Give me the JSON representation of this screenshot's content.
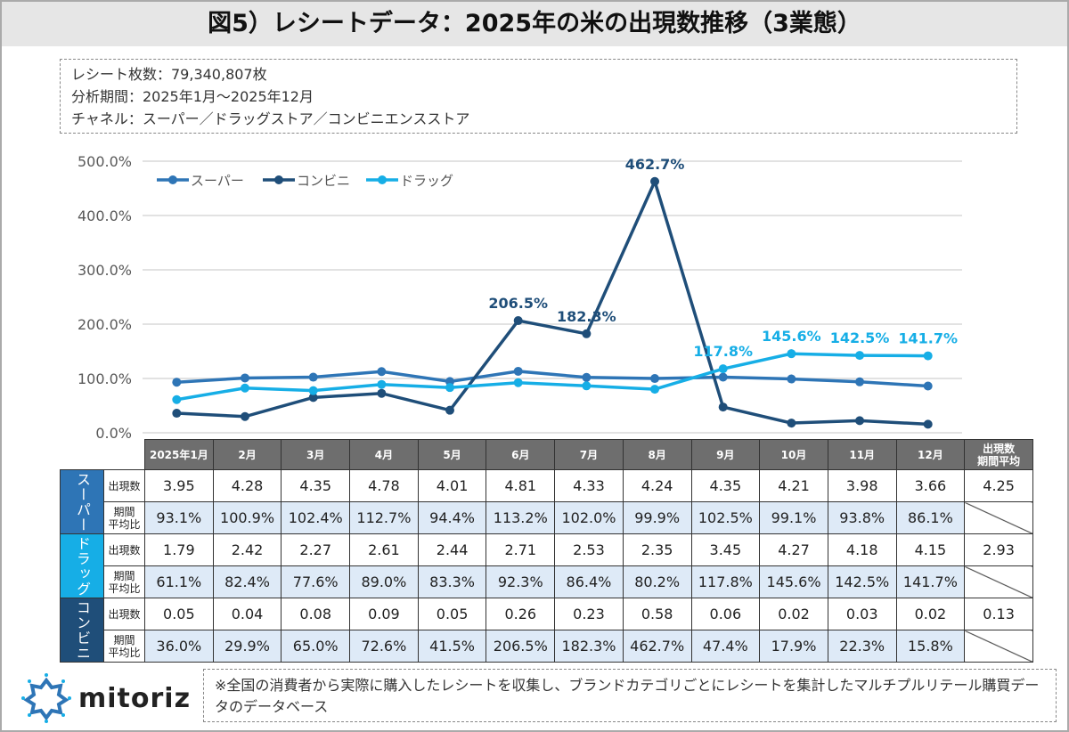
{
  "title": "図5）レシートデータ：2025年の米の出現数推移（3業態）",
  "info": [
    "レシート枚数：79,340,807枚",
    "分析期間：2025年1月～2025年12月",
    "チャネル：スーパー／ドラッグストア／コンビニエンスストア"
  ],
  "chart_data": {
    "type": "line",
    "categories": [
      "2025年1月",
      "2月",
      "3月",
      "4月",
      "5月",
      "6月",
      "7月",
      "8月",
      "9月",
      "10月",
      "11月",
      "12月"
    ],
    "ylim": [
      0,
      500
    ],
    "yticks": [
      "0.0%",
      "100.0%",
      "200.0%",
      "300.0%",
      "400.0%",
      "500.0%"
    ],
    "grid": true,
    "legend": "top-left",
    "series": [
      {
        "name": "スーパー",
        "color": "#2e75b6",
        "values": [
          93.1,
          100.9,
          102.4,
          112.7,
          94.4,
          113.2,
          102.0,
          99.9,
          102.5,
          99.1,
          93.8,
          86.1
        ],
        "labels": []
      },
      {
        "name": "コンビニ",
        "color": "#1f4e79",
        "values": [
          36.0,
          29.9,
          65.0,
          72.6,
          41.5,
          206.5,
          182.3,
          462.7,
          47.4,
          17.9,
          22.3,
          15.8
        ],
        "labels": [
          5,
          6,
          7
        ]
      },
      {
        "name": "ドラッグ",
        "color": "#16aee6",
        "values": [
          61.1,
          82.4,
          77.6,
          89.0,
          83.3,
          92.3,
          86.4,
          80.2,
          117.8,
          145.6,
          142.5,
          141.7
        ],
        "labels": [
          8,
          9,
          10,
          11
        ]
      }
    ]
  },
  "table": {
    "avg_header": "出現数\n期間平均",
    "count_label": "出現数",
    "ratio_label": "期間\n平均比",
    "groups": [
      {
        "name": "スーパー",
        "color": "#2e75b6",
        "counts": [
          "3.95",
          "4.28",
          "4.35",
          "4.78",
          "4.01",
          "4.81",
          "4.33",
          "4.24",
          "4.35",
          "4.21",
          "3.98",
          "3.66"
        ],
        "avg": "4.25",
        "ratios": [
          "93.1%",
          "100.9%",
          "102.4%",
          "112.7%",
          "94.4%",
          "113.2%",
          "102.0%",
          "99.9%",
          "102.5%",
          "99.1%",
          "93.8%",
          "86.1%"
        ]
      },
      {
        "name": "ドラッグ",
        "color": "#16aee6",
        "counts": [
          "1.79",
          "2.42",
          "2.27",
          "2.61",
          "2.44",
          "2.71",
          "2.53",
          "2.35",
          "3.45",
          "4.27",
          "4.18",
          "4.15"
        ],
        "avg": "2.93",
        "ratios": [
          "61.1%",
          "82.4%",
          "77.6%",
          "89.0%",
          "83.3%",
          "92.3%",
          "86.4%",
          "80.2%",
          "117.8%",
          "145.6%",
          "142.5%",
          "141.7%"
        ]
      },
      {
        "name": "コンビニ",
        "color": "#1f4e79",
        "counts": [
          "0.05",
          "0.04",
          "0.08",
          "0.09",
          "0.05",
          "0.26",
          "0.23",
          "0.58",
          "0.06",
          "0.02",
          "0.03",
          "0.02"
        ],
        "avg": "0.13",
        "ratios": [
          "36.0%",
          "29.9%",
          "65.0%",
          "72.6%",
          "41.5%",
          "206.5%",
          "182.3%",
          "462.7%",
          "47.4%",
          "17.9%",
          "22.3%",
          "15.8%"
        ]
      }
    ]
  },
  "note": "※全国の消費者から実際に購入したレシートを収集し、ブランドカテゴリごとにレシートを集計したマルチプルリテール購買データのデータベース",
  "logo": {
    "text": "mitoriz",
    "icon": "mitoriz-logo-icon"
  }
}
